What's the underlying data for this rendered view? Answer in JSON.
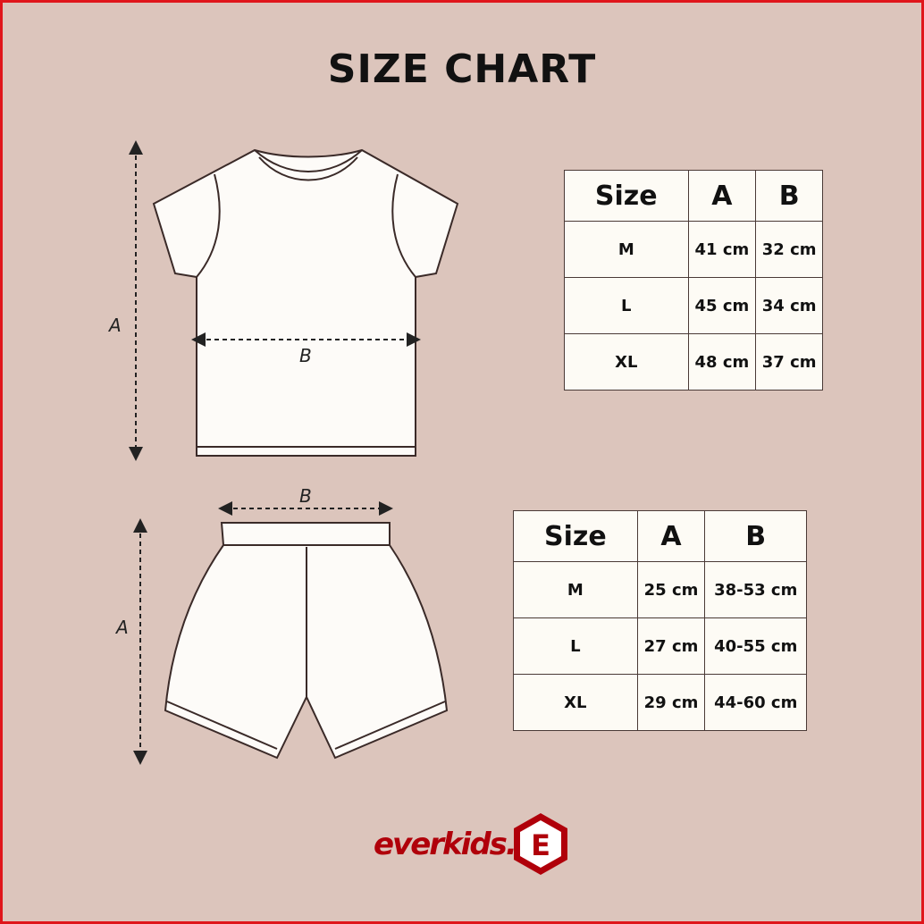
{
  "title": "SIZE CHART",
  "shirt": {
    "dim_labels": {
      "a": "A",
      "b": "B"
    },
    "table": {
      "headers": [
        "Size",
        "A",
        "B"
      ],
      "rows": [
        [
          "M",
          "41 cm",
          "32 cm"
        ],
        [
          "L",
          "45 cm",
          "34 cm"
        ],
        [
          "XL",
          "48 cm",
          "37 cm"
        ]
      ]
    }
  },
  "shorts": {
    "dim_labels": {
      "a": "A",
      "b": "B"
    },
    "table": {
      "headers": [
        "Size",
        "A",
        "B"
      ],
      "rows": [
        [
          "M",
          "25 cm",
          "38-53 cm"
        ],
        [
          "L",
          "27 cm",
          "40-55 cm"
        ],
        [
          "XL",
          "29 cm",
          "44-60 cm"
        ]
      ]
    }
  },
  "brand": {
    "name": "everkids.",
    "logo_letter": "E",
    "color": "#b0000a"
  },
  "colors": {
    "background": "#dcc5bc",
    "border": "#e0161b"
  }
}
